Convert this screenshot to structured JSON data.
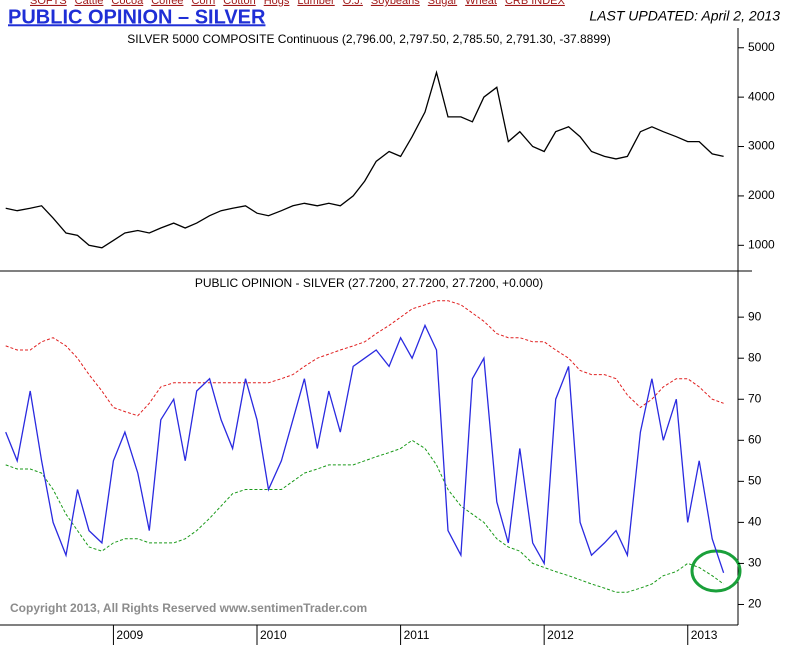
{
  "header": {
    "nav": [
      "SOFTS",
      "Cattle",
      "Cocoa",
      "Coffee",
      "Corn",
      "Cotton",
      "Hogs",
      "Lumber",
      "O.J.",
      "Soybeans",
      "Sugar",
      "Wheat",
      "CRB INDEX"
    ],
    "title": "PUBLIC OPINION – SILVER",
    "updated": "LAST UPDATED:  April 2, 2013"
  },
  "chart_data": [
    {
      "type": "line",
      "title": "SILVER 5000 COMPOSITE Continuous (2,796.00, 2,797.50, 2,785.50, 2,791.30, -37.8899)",
      "x": [
        2008.25,
        2008.33,
        2008.42,
        2008.5,
        2008.58,
        2008.67,
        2008.75,
        2008.83,
        2008.92,
        2009,
        2009.08,
        2009.17,
        2009.25,
        2009.33,
        2009.42,
        2009.5,
        2009.58,
        2009.67,
        2009.75,
        2009.83,
        2009.92,
        2010,
        2010.08,
        2010.17,
        2010.25,
        2010.33,
        2010.42,
        2010.5,
        2010.58,
        2010.67,
        2010.75,
        2010.83,
        2010.92,
        2011,
        2011.08,
        2011.17,
        2011.25,
        2011.33,
        2011.42,
        2011.5,
        2011.58,
        2011.67,
        2011.75,
        2011.83,
        2011.92,
        2012,
        2012.08,
        2012.17,
        2012.25,
        2012.33,
        2012.42,
        2012.5,
        2012.58,
        2012.67,
        2012.75,
        2012.83,
        2012.92,
        2013,
        2013.08,
        2013.17,
        2013.25
      ],
      "series": [
        {
          "color": "#000000",
          "dashed": false,
          "values": [
            1750,
            1700,
            1750,
            1800,
            1550,
            1250,
            1200,
            1000,
            950,
            1100,
            1250,
            1300,
            1250,
            1350,
            1450,
            1350,
            1450,
            1600,
            1700,
            1750,
            1800,
            1650,
            1600,
            1700,
            1800,
            1850,
            1800,
            1850,
            1800,
            2000,
            2300,
            2700,
            2900,
            2800,
            3200,
            3700,
            4500,
            3600,
            3600,
            3500,
            4000,
            4200,
            3100,
            3300,
            3000,
            2900,
            3300,
            3400,
            3200,
            2900,
            2800,
            2750,
            2800,
            3300,
            3400,
            3300,
            3200,
            3100,
            3100,
            2850,
            2800
          ]
        }
      ],
      "xlim": [
        2008.21,
        2013.35
      ],
      "ylim": [
        500,
        5400
      ],
      "yticks": [
        1000,
        2000,
        3000,
        4000,
        5000
      ]
    },
    {
      "type": "line",
      "title": "PUBLIC OPINION - SILVER (27.7200, 27.7200, 27.7200, +0.000)",
      "annotation": "Copyright 2013, All Rights Reserved  www.sentimenTrader.com",
      "x": [
        2008.25,
        2008.33,
        2008.42,
        2008.5,
        2008.58,
        2008.67,
        2008.75,
        2008.83,
        2008.92,
        2009,
        2009.08,
        2009.17,
        2009.25,
        2009.33,
        2009.42,
        2009.5,
        2009.58,
        2009.67,
        2009.75,
        2009.83,
        2009.92,
        2010,
        2010.08,
        2010.17,
        2010.25,
        2010.33,
        2010.42,
        2010.5,
        2010.58,
        2010.67,
        2010.75,
        2010.83,
        2010.92,
        2011,
        2011.08,
        2011.17,
        2011.25,
        2011.33,
        2011.42,
        2011.5,
        2011.58,
        2011.67,
        2011.75,
        2011.83,
        2011.92,
        2012,
        2012.08,
        2012.17,
        2012.25,
        2012.33,
        2012.42,
        2012.5,
        2012.58,
        2012.67,
        2012.75,
        2012.83,
        2012.92,
        2013,
        2013.08,
        2013.17,
        2013.25
      ],
      "series": [
        {
          "color": "#e02020",
          "dashed": true,
          "values": [
            83,
            82,
            82,
            84,
            85,
            83,
            80,
            76,
            72,
            68,
            67,
            66,
            69,
            73,
            74,
            74,
            74,
            74,
            74,
            74,
            74,
            74,
            74,
            75,
            76,
            78,
            80,
            81,
            82,
            83,
            84,
            86,
            88,
            90,
            92,
            93,
            94,
            94,
            93,
            91,
            89,
            86,
            85,
            85,
            84,
            84,
            82,
            80,
            77,
            76,
            76,
            75,
            71,
            68,
            70,
            73,
            75,
            75,
            73,
            70,
            69
          ]
        },
        {
          "color": "#1a9a1a",
          "dashed": true,
          "values": [
            54,
            53,
            53,
            52,
            48,
            42,
            38,
            34,
            33,
            35,
            36,
            36,
            35,
            35,
            35,
            36,
            38,
            41,
            44,
            47,
            48,
            48,
            48,
            48,
            50,
            52,
            53,
            54,
            54,
            54,
            55,
            56,
            57,
            58,
            60,
            58,
            54,
            48,
            44,
            42,
            40,
            36,
            34,
            33,
            30,
            29,
            28,
            27,
            26,
            25,
            24,
            23,
            23,
            24,
            25,
            27,
            28,
            30,
            29,
            27,
            25
          ]
        },
        {
          "color": "#2a2ae0",
          "dashed": false,
          "values": [
            62,
            55,
            72,
            55,
            40,
            32,
            48,
            38,
            35,
            55,
            62,
            52,
            38,
            65,
            70,
            55,
            72,
            75,
            65,
            58,
            75,
            65,
            48,
            55,
            65,
            75,
            58,
            72,
            62,
            78,
            80,
            82,
            78,
            85,
            80,
            88,
            82,
            38,
            32,
            75,
            80,
            45,
            35,
            58,
            35,
            30,
            70,
            78,
            40,
            32,
            35,
            38,
            32,
            62,
            75,
            60,
            70,
            40,
            55,
            36,
            27.72
          ]
        }
      ],
      "xlim": [
        2008.21,
        2013.35
      ],
      "xticks": [
        2009,
        2010,
        2011,
        2012,
        2013
      ],
      "ylim": [
        15,
        101
      ],
      "yticks": [
        20,
        30,
        40,
        50,
        60,
        70,
        80,
        90
      ]
    }
  ]
}
